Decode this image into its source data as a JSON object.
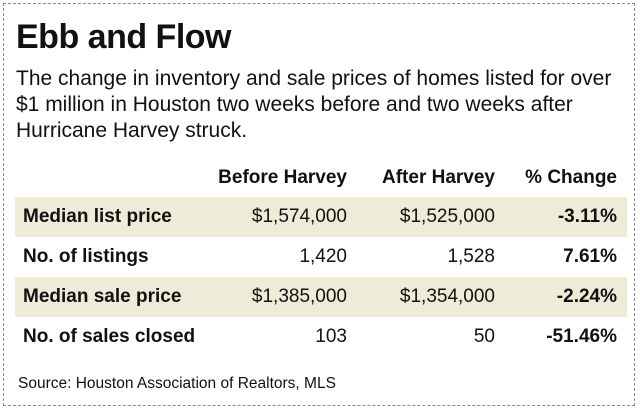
{
  "title": "Ebb and Flow",
  "subtitle": "The change in inventory and sale prices of homes listed for over $1 million in Houston two weeks before and two weeks after Hurricane Harvey struck.",
  "source": "Source: Houston Association of Realtors, MLS",
  "colors": {
    "row_shade": "#eeebd9",
    "border": "#8a8a8a"
  },
  "chart_data": {
    "type": "table",
    "columns": [
      "",
      "Before Harvey",
      "After Harvey",
      "% Change"
    ],
    "rows": [
      {
        "label": "Median list price",
        "before": "$1,574,000",
        "after": "$1,525,000",
        "change": "-3.11%"
      },
      {
        "label": "No. of listings",
        "before": "1,420",
        "after": "1,528",
        "change": "7.61%"
      },
      {
        "label": "Median sale price",
        "before": "$1,385,000",
        "after": "$1,354,000",
        "change": "-2.24%"
      },
      {
        "label": "No. of sales closed",
        "before": "103",
        "after": "50",
        "change": "-51.46%"
      }
    ]
  }
}
